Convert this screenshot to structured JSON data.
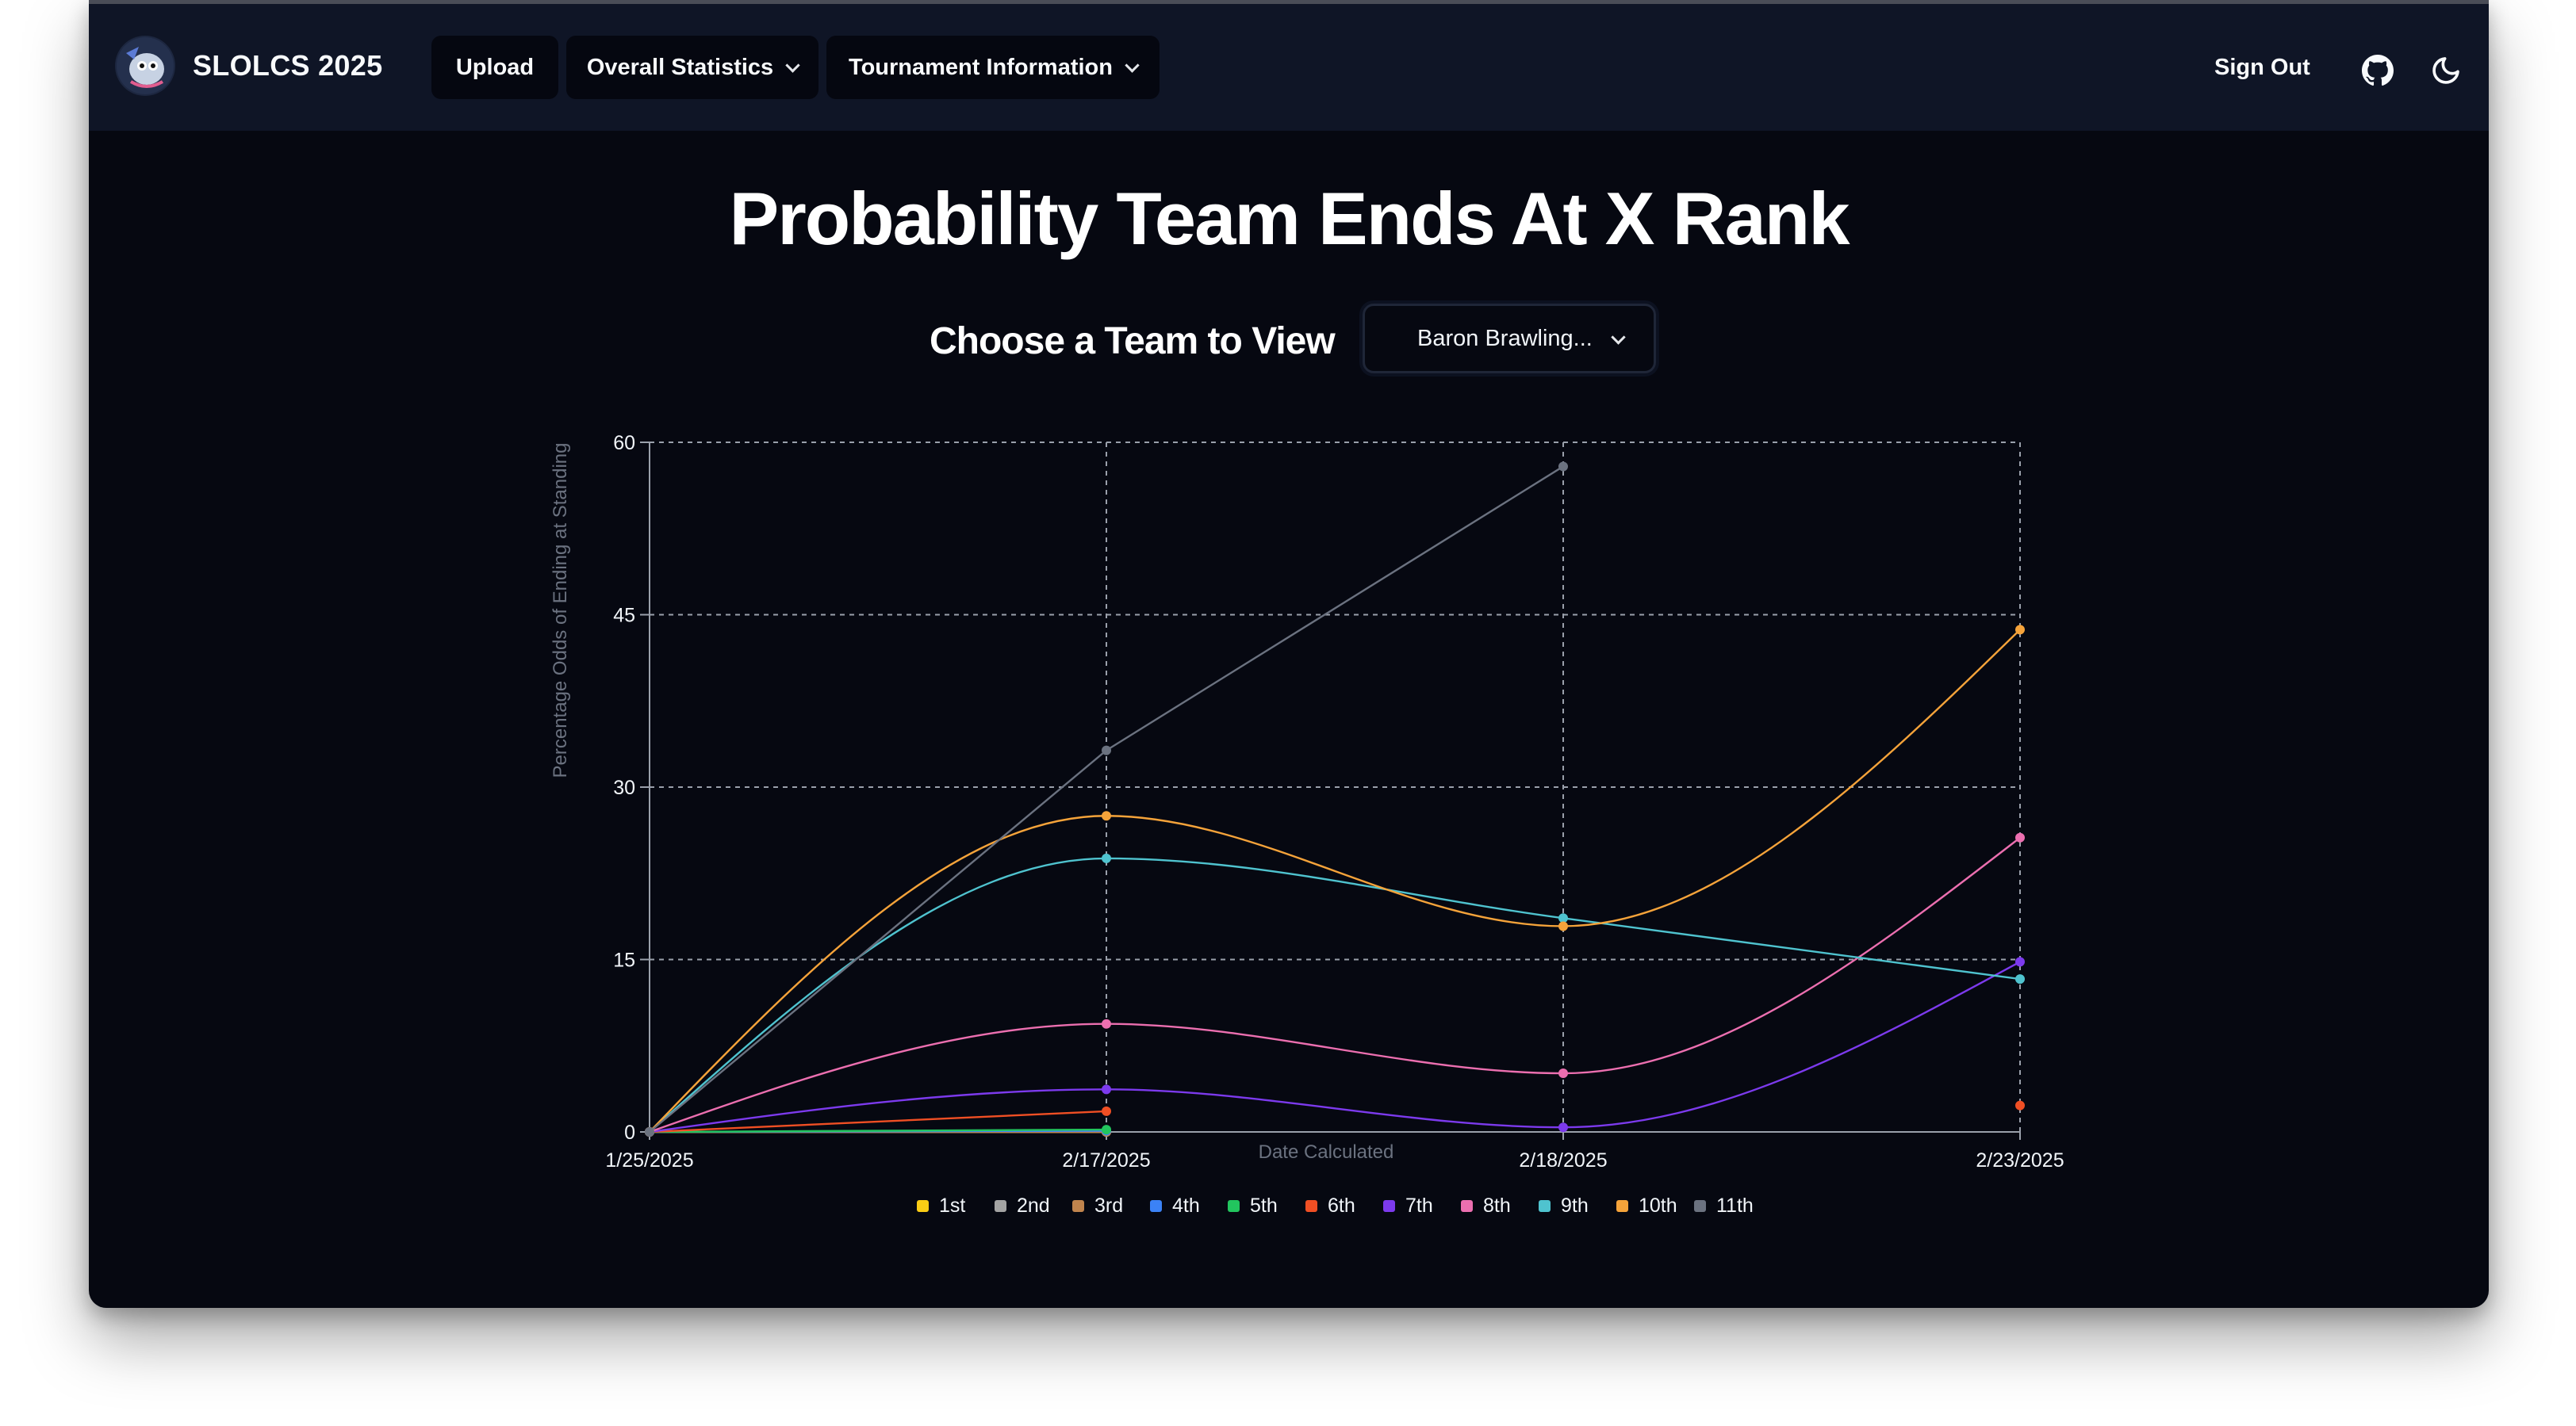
{
  "app": {
    "title": "SLOLCS 2025"
  },
  "nav": {
    "upload": "Upload",
    "overall_statistics": "Overall Statistics",
    "tournament_information": "Tournament Information",
    "sign_out": "Sign Out"
  },
  "page": {
    "title": "Probability Team Ends At X Rank",
    "choose_label": "Choose a Team to View",
    "selected_team": "Baron Brawling..."
  },
  "icons": {
    "github": "github-icon",
    "theme": "moon-icon",
    "logo": "logo-icon",
    "dropdown": "chevron-down-icon"
  },
  "chart_data": {
    "type": "line",
    "xlabel": "Date Calculated",
    "ylabel": "Percentage Odds of Ending at Standing",
    "categories": [
      "1/25/2025",
      "2/17/2025",
      "2/18/2025",
      "2/23/2025"
    ],
    "yticks": [
      0,
      15,
      30,
      45,
      60
    ],
    "ylim": [
      0,
      60
    ],
    "grid": true,
    "legend_position": "bottom",
    "series": [
      {
        "name": "1st",
        "color": "#facc15",
        "values": [
          0,
          0,
          null,
          null
        ]
      },
      {
        "name": "2nd",
        "color": "#a3a3a3",
        "values": [
          0,
          0,
          null,
          null
        ]
      },
      {
        "name": "3rd",
        "color": "#c0844d",
        "values": [
          0,
          0,
          null,
          null
        ]
      },
      {
        "name": "4th",
        "color": "#3b82f6",
        "values": [
          0,
          0.1,
          null,
          null
        ]
      },
      {
        "name": "5th",
        "color": "#22c55e",
        "values": [
          0,
          0.2,
          null,
          null
        ]
      },
      {
        "name": "6th",
        "color": "#f04f24",
        "values": [
          0,
          1.8,
          null,
          2.3
        ]
      },
      {
        "name": "7th",
        "color": "#7c3aed",
        "values": [
          0,
          3.7,
          0.4,
          14.8
        ]
      },
      {
        "name": "8th",
        "color": "#ec6fb0",
        "values": [
          0,
          9.4,
          5.1,
          25.6
        ]
      },
      {
        "name": "9th",
        "color": "#4fc3cf",
        "values": [
          0,
          23.8,
          18.6,
          13.3
        ]
      },
      {
        "name": "10th",
        "color": "#f5a33a",
        "values": [
          0,
          27.5,
          17.9,
          43.7
        ]
      },
      {
        "name": "11th",
        "color": "#6b7280",
        "values": [
          0,
          33.2,
          57.9,
          null
        ]
      }
    ]
  }
}
